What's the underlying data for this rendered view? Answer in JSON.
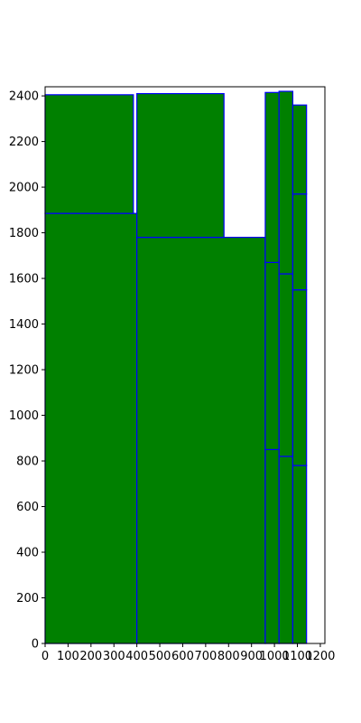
{
  "chart_data": {
    "type": "bar",
    "subtype": "rectangles",
    "title": "",
    "xlabel": "",
    "ylabel": "",
    "xlim": [
      0,
      1220
    ],
    "ylim": [
      0,
      2440
    ],
    "xticks": [
      0,
      100,
      200,
      300,
      400,
      500,
      600,
      700,
      800,
      900,
      1000,
      1100,
      1200
    ],
    "yticks": [
      0,
      200,
      400,
      600,
      800,
      1000,
      1200,
      1400,
      1600,
      1800,
      2000,
      2200,
      2400
    ],
    "grid": false,
    "legend": "none",
    "face_color": "#008000",
    "edge_color": "#0000ff",
    "rects": [
      {
        "x": 0,
        "y": 0,
        "w": 400,
        "h": 1885
      },
      {
        "x": 0,
        "y": 1885,
        "w": 385,
        "h": 520
      },
      {
        "x": 400,
        "y": 0,
        "w": 560,
        "h": 1780
      },
      {
        "x": 400,
        "y": 1780,
        "w": 380,
        "h": 630
      },
      {
        "x": 960,
        "y": 0,
        "w": 60,
        "h": 850
      },
      {
        "x": 960,
        "y": 850,
        "w": 60,
        "h": 820
      },
      {
        "x": 960,
        "y": 1670,
        "w": 60,
        "h": 745
      },
      {
        "x": 1020,
        "y": 0,
        "w": 60,
        "h": 820
      },
      {
        "x": 1020,
        "y": 820,
        "w": 60,
        "h": 800
      },
      {
        "x": 1020,
        "y": 1620,
        "w": 60,
        "h": 800
      },
      {
        "x": 1080,
        "y": 0,
        "w": 60,
        "h": 780
      },
      {
        "x": 1080,
        "y": 780,
        "w": 60,
        "h": 770
      },
      {
        "x": 1080,
        "y": 1550,
        "w": 60,
        "h": 420
      },
      {
        "x": 1080,
        "y": 1970,
        "w": 60,
        "h": 390
      }
    ]
  }
}
